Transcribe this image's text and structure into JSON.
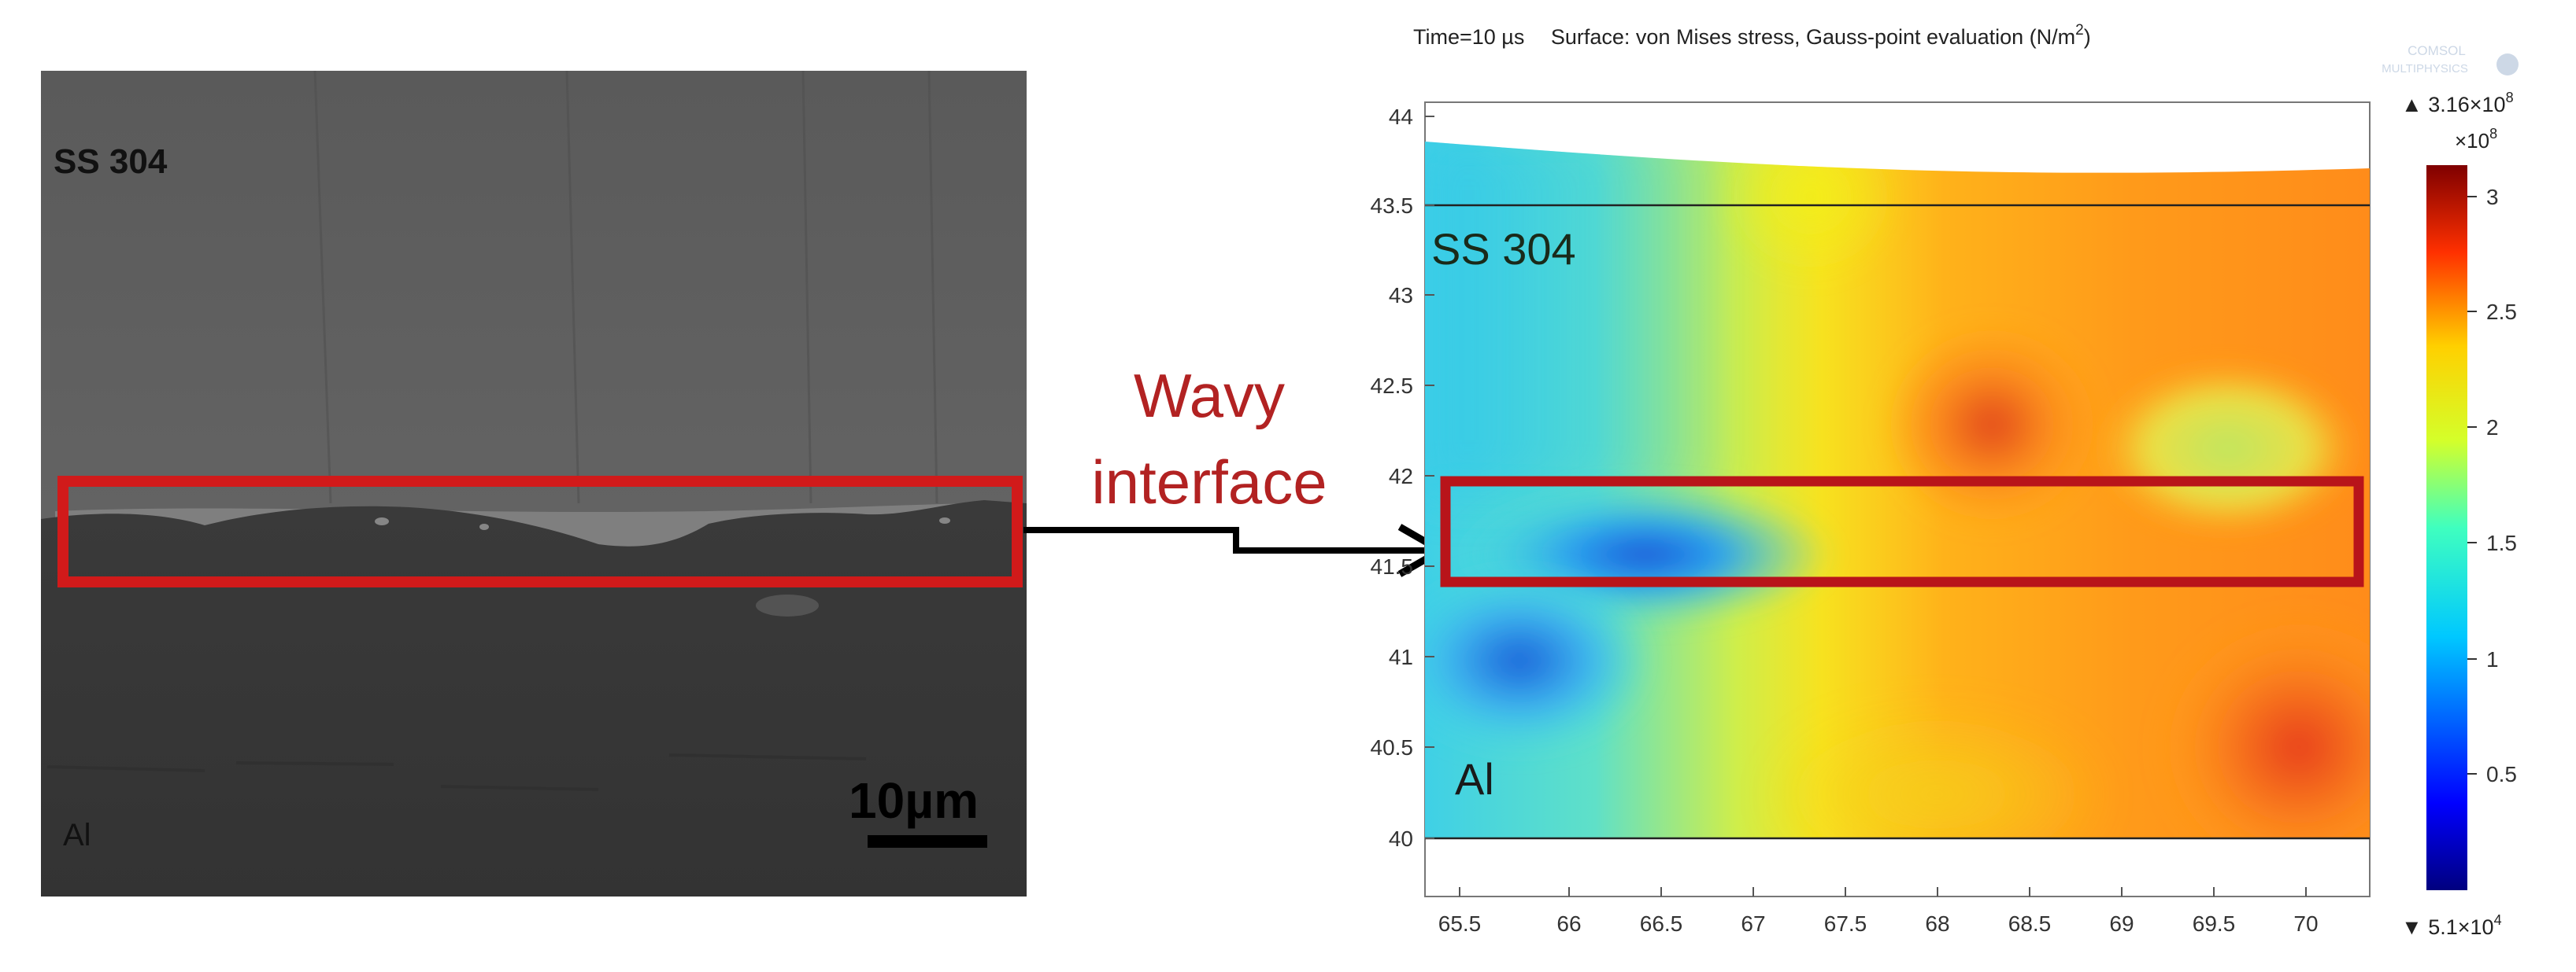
{
  "left_panel": {
    "top_label": "SS 304",
    "bottom_label": "Al",
    "scale_bar_label": "10µm"
  },
  "annotation": {
    "line1": "Wavy",
    "line2": "interface",
    "text_color": "#b22222",
    "box_color": "#d11a1a"
  },
  "right_panel": {
    "title_parts": {
      "time": "Time=10 µs",
      "surface": "Surface: von Mises stress, Gauss-point evaluation (N/m",
      "unit_sup": "2",
      "unit_end": ")"
    },
    "logo_text": "COMSOL MULTIPHYSICS",
    "top_label": "SS 304",
    "bottom_label": "Al",
    "x_ticks": [
      "65.5",
      "66",
      "66.5",
      "67",
      "67.5",
      "68",
      "68.5",
      "69",
      "69.5",
      "70"
    ],
    "y_ticks": [
      "44",
      "43.5",
      "43",
      "42.5",
      "42",
      "41.5",
      "41",
      "40.5",
      "40"
    ],
    "colorbar": {
      "max_prefix": "▲ 3.16×10",
      "max_exp": "8",
      "multiplier_prefix": "×10",
      "multiplier_exp": "8",
      "min_prefix": "▼ 5.1×10",
      "min_exp": "4",
      "ticks": [
        "3",
        "2.5",
        "2",
        "1.5",
        "1",
        "0.5"
      ]
    }
  }
}
